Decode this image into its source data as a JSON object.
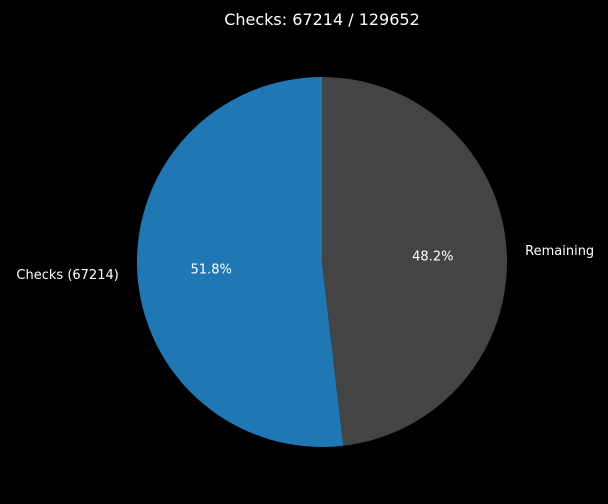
{
  "chart_data": {
    "type": "pie",
    "title": "Checks: 67214 / 129652",
    "background": "#000000",
    "text_color": "#ffffff",
    "start_angle_deg": 90,
    "direction": "counterclockwise",
    "slices": [
      {
        "label": "Checks (67214)",
        "value": 67214,
        "percent_label": "51.8%",
        "color": "#1f77b4"
      },
      {
        "label": "Remaining",
        "value": 62438,
        "percent_label": "48.2%",
        "color": "#444444"
      }
    ]
  }
}
